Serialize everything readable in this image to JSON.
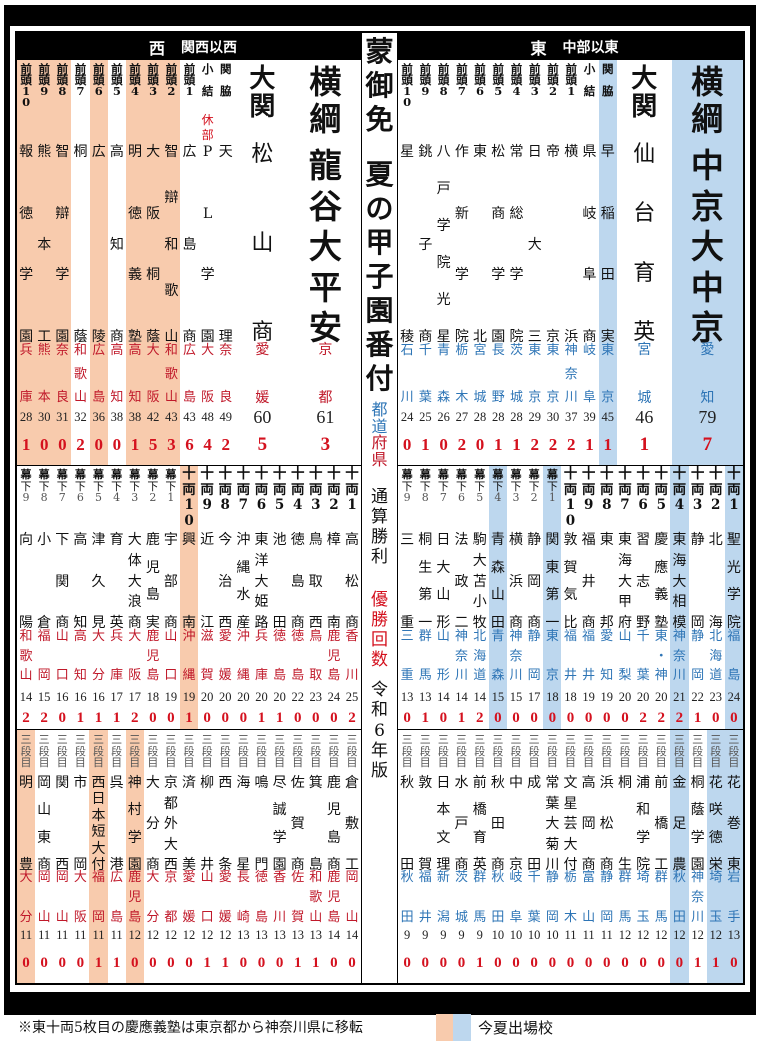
{
  "header": {
    "west": {
      "side": "西",
      "region": "関西以西"
    },
    "east": {
      "side": "東",
      "region": "中部以東"
    }
  },
  "center": {
    "gomen": "蒙御免",
    "title": "夏の甲子園番付",
    "pref_east": "都道",
    "pref_west": "府県",
    "wins_label": "通算勝利",
    "titles_label": "優勝回数",
    "edition": "令和6年版"
  },
  "footer": {
    "note": "※東十両5枚目の慶應義塾は東京都から神奈川県に移転",
    "legend_label": "今夏出場校"
  },
  "colors": {
    "hl_west": "#f8cbad",
    "hl_east": "#bdd7ee",
    "pref_west": "#c0192a",
    "pref_east": "#2e75b6",
    "titles": "#d4111e"
  },
  "chart_data": {
    "type": "table",
    "title": "蒙御免 夏の甲子園番付 令和6年版",
    "legend": {
      "highlight": "今夏出場校",
      "wins": "通算勝利",
      "titles": "優勝回数"
    },
    "west": {
      "makuuchi": [
        {
          "rank": "前頭10",
          "school": "報徳学園",
          "pref": "兵庫",
          "wins": 28,
          "titles": 1,
          "highlight": true
        },
        {
          "rank": "前頭9",
          "school": "熊本工",
          "pref": "熊本",
          "wins": 30,
          "titles": 0,
          "highlight": true
        },
        {
          "rank": "前頭8",
          "school": "智辯学園",
          "pref": "奈良",
          "wins": 31,
          "titles": 0,
          "highlight": true
        },
        {
          "rank": "前頭7",
          "school": "桐蔭",
          "pref": "和歌山",
          "wins": 32,
          "titles": 2
        },
        {
          "rank": "前頭6",
          "school": "広陵",
          "pref": "広島",
          "wins": 36,
          "titles": 0,
          "highlight": true
        },
        {
          "rank": "前頭5",
          "school": "高知商",
          "pref": "高知",
          "wins": 38,
          "titles": 0
        },
        {
          "rank": "前頭4",
          "school": "明徳義塾",
          "pref": "高知",
          "wins": 38,
          "titles": 1,
          "highlight": true
        },
        {
          "rank": "前頭3",
          "school": "大阪桐蔭",
          "pref": "大阪",
          "wins": 42,
          "titles": 5,
          "highlight": true
        },
        {
          "rank": "前頭2",
          "school": "智辯和歌山",
          "pref": "和歌山",
          "wins": 43,
          "titles": 3,
          "highlight": true
        },
        {
          "rank": "前頭1",
          "school": "広島商",
          "pref": "広島",
          "wins": 43,
          "titles": 6
        },
        {
          "rank": "小結",
          "school": "PL学園",
          "pref": "大阪",
          "wins": 48,
          "titles": 4,
          "note": "休部"
        },
        {
          "rank": "関脇",
          "school": "天理",
          "pref": "奈良",
          "wins": 49,
          "titles": 2
        }
      ],
      "ozeki": {
        "rank": "大関",
        "school": "松山商",
        "pref": "愛媛",
        "wins": 60,
        "titles": 5
      },
      "yokozuna": {
        "rank": "横綱",
        "school": "龍谷大平安",
        "pref": "京都",
        "wins": 61,
        "titles": 3
      },
      "juryo_makushita": [
        {
          "rank": "幕下9",
          "school": "向陽",
          "pref": "和歌山",
          "wins": 14,
          "titles": 2
        },
        {
          "rank": "幕下8",
          "school": "小倉",
          "pref": "福岡",
          "wins": 15,
          "titles": 2
        },
        {
          "rank": "幕下7",
          "school": "下関商",
          "pref": "山口",
          "wins": 16,
          "titles": 0
        },
        {
          "rank": "幕下6",
          "school": "高知",
          "pref": "高知",
          "wins": 16,
          "titles": 1
        },
        {
          "rank": "幕下5",
          "school": "津久見",
          "pref": "大分",
          "wins": 16,
          "titles": 1
        },
        {
          "rank": "幕下4",
          "school": "育英",
          "pref": "兵庫",
          "wins": 17,
          "titles": 1
        },
        {
          "rank": "幕下3",
          "school": "大体大浪商",
          "pref": "大阪",
          "wins": 17,
          "titles": 2
        },
        {
          "rank": "幕下2",
          "school": "鹿児島実",
          "pref": "鹿児島",
          "wins": 18,
          "titles": 0
        },
        {
          "rank": "幕下1",
          "school": "宇部商",
          "pref": "山口",
          "wins": 19,
          "titles": 0
        },
        {
          "rank": "十両10",
          "school": "興南",
          "pref": "沖縄",
          "wins": 19,
          "titles": 1,
          "highlight": true
        },
        {
          "rank": "十両9",
          "school": "近江",
          "pref": "滋賀",
          "wins": 20,
          "titles": 0
        },
        {
          "rank": "十両8",
          "school": "今治西",
          "pref": "愛媛",
          "wins": 20,
          "titles": 0
        },
        {
          "rank": "十両7",
          "school": "沖縄水産",
          "pref": "沖縄",
          "wins": 20,
          "titles": 0
        },
        {
          "rank": "十両6",
          "school": "東洋大姫路",
          "pref": "兵庫",
          "wins": 20,
          "titles": 1
        },
        {
          "rank": "十両5",
          "school": "池田",
          "pref": "徳島",
          "wins": 20,
          "titles": 1
        },
        {
          "rank": "十両4",
          "school": "徳島商",
          "pref": "徳島",
          "wins": 22,
          "titles": 0
        },
        {
          "rank": "十両3",
          "school": "鳥取西",
          "pref": "鳥取",
          "wins": 23,
          "titles": 0
        },
        {
          "rank": "十両2",
          "school": "樟南",
          "pref": "鹿児島",
          "wins": 24,
          "titles": 0
        },
        {
          "rank": "十両1",
          "school": "高松商",
          "pref": "香川",
          "wins": 25,
          "titles": 2
        }
      ],
      "sandanme": [
        {
          "rank": "三段目",
          "school": "明豊",
          "pref": "大分",
          "wins": 11,
          "titles": 0,
          "highlight": true
        },
        {
          "rank": "三段目",
          "school": "岡山東商",
          "pref": "岡山",
          "wins": 11,
          "titles": 0
        },
        {
          "rank": "三段目",
          "school": "関西",
          "pref": "岡山",
          "wins": 11,
          "titles": 0
        },
        {
          "rank": "三段目",
          "school": "市岡",
          "pref": "大阪",
          "wins": 11,
          "titles": 0
        },
        {
          "rank": "三段目",
          "school": "西日本短大付",
          "pref": "福岡",
          "wins": 11,
          "titles": 1,
          "highlight": true
        },
        {
          "rank": "三段目",
          "school": "呉港",
          "pref": "広島",
          "wins": 11,
          "titles": 1
        },
        {
          "rank": "三段目",
          "school": "神村学園",
          "pref": "鹿児島",
          "wins": 12,
          "titles": 0,
          "highlight": true
        },
        {
          "rank": "三段目",
          "school": "大分商",
          "pref": "大分",
          "wins": 12,
          "titles": 0
        },
        {
          "rank": "三段目",
          "school": "京都外大西",
          "pref": "京都",
          "wins": 12,
          "titles": 0
        },
        {
          "rank": "三段目",
          "school": "済美",
          "pref": "愛媛",
          "wins": 12,
          "titles": 0
        },
        {
          "rank": "三段目",
          "school": "柳井",
          "pref": "山口",
          "wins": 12,
          "titles": 1
        },
        {
          "rank": "三段目",
          "school": "西条",
          "pref": "愛媛",
          "wins": 12,
          "titles": 1
        },
        {
          "rank": "三段目",
          "school": "海星",
          "pref": "長崎",
          "wins": 13,
          "titles": 0
        },
        {
          "rank": "三段目",
          "school": "鳴門",
          "pref": "徳島",
          "wins": 13,
          "titles": 0
        },
        {
          "rank": "三段目",
          "school": "尽誠学園",
          "pref": "香川",
          "wins": 13,
          "titles": 0
        },
        {
          "rank": "三段目",
          "school": "佐賀商",
          "pref": "佐賀",
          "wins": 13,
          "titles": 1
        },
        {
          "rank": "三段目",
          "school": "箕島",
          "pref": "和歌山",
          "wins": 13,
          "titles": 1
        },
        {
          "rank": "三段目",
          "school": "鹿児島商",
          "pref": "鹿児島",
          "wins": 14,
          "titles": 0
        },
        {
          "rank": "三段目",
          "school": "倉敷工",
          "pref": "岡山",
          "wins": 14,
          "titles": 0
        }
      ]
    },
    "east": {
      "makuuchi": [
        {
          "rank": "前頭10",
          "school": "星稜",
          "pref": "石川",
          "wins": 24,
          "titles": 0
        },
        {
          "rank": "前頭9",
          "school": "銚子商",
          "pref": "千葉",
          "wins": 25,
          "titles": 1
        },
        {
          "rank": "前頭8",
          "school": "八戸学院光星",
          "pref": "青森",
          "wins": 26,
          "titles": 0
        },
        {
          "rank": "前頭7",
          "school": "作新学院",
          "pref": "栃木",
          "wins": 27,
          "titles": 2
        },
        {
          "rank": "前頭6",
          "school": "東北",
          "pref": "宮城",
          "wins": 28,
          "titles": 0
        },
        {
          "rank": "前頭5",
          "school": "松商学園",
          "pref": "長野",
          "wins": 28,
          "titles": 1
        },
        {
          "rank": "前頭4",
          "school": "常総学院",
          "pref": "茨城",
          "wins": 28,
          "titles": 1
        },
        {
          "rank": "前頭3",
          "school": "日大三",
          "pref": "東京",
          "wins": 29,
          "titles": 2
        },
        {
          "rank": "前頭2",
          "school": "帝京",
          "pref": "東京",
          "wins": 30,
          "titles": 2
        },
        {
          "rank": "前頭1",
          "school": "横浜",
          "pref": "神奈川",
          "wins": 37,
          "titles": 2
        },
        {
          "rank": "小結",
          "school": "県岐阜商",
          "pref": "岐阜",
          "wins": 39,
          "titles": 1
        },
        {
          "rank": "関脇",
          "school": "早稲田実",
          "pref": "東京",
          "wins": 45,
          "titles": 1,
          "highlight": true
        }
      ],
      "ozeki": {
        "rank": "大関",
        "school": "仙台育英",
        "pref": "宮城",
        "wins": 46,
        "titles": 1
      },
      "yokozuna": {
        "rank": "横綱",
        "school": "中京大中京",
        "pref": "愛知",
        "wins": 79,
        "titles": 7,
        "highlight": true
      },
      "juryo_makushita": [
        {
          "rank": "幕下9",
          "school": "三重",
          "pref": "三重",
          "wins": 13,
          "titles": 0
        },
        {
          "rank": "幕下8",
          "school": "桐生第一",
          "pref": "群馬",
          "wins": 13,
          "titles": 1
        },
        {
          "rank": "幕下7",
          "school": "日大山形",
          "pref": "山形",
          "wins": 14,
          "titles": 0
        },
        {
          "rank": "幕下6",
          "school": "法政二",
          "pref": "神奈川",
          "wins": 14,
          "titles": 1
        },
        {
          "rank": "幕下5",
          "school": "駒大苫小牧",
          "pref": "北海道",
          "wins": 14,
          "titles": 2
        },
        {
          "rank": "幕下4",
          "school": "青森山田",
          "pref": "青森",
          "wins": 15,
          "titles": 0,
          "highlight": true
        },
        {
          "rank": "幕下3",
          "school": "横浜商",
          "pref": "神奈川",
          "wins": 15,
          "titles": 0
        },
        {
          "rank": "幕下2",
          "school": "静岡商",
          "pref": "静岡",
          "wins": 17,
          "titles": 0
        },
        {
          "rank": "幕下1",
          "school": "関東第一",
          "pref": "東京",
          "wins": 18,
          "titles": 0,
          "highlight": true
        },
        {
          "rank": "十両10",
          "school": "敦賀気比",
          "pref": "福井",
          "wins": 18,
          "titles": 0
        },
        {
          "rank": "十両9",
          "school": "福井商",
          "pref": "福井",
          "wins": 19,
          "titles": 0
        },
        {
          "rank": "十両8",
          "school": "東邦",
          "pref": "愛知",
          "wins": 19,
          "titles": 0
        },
        {
          "rank": "十両7",
          "school": "東海大甲府",
          "pref": "山梨",
          "wins": 20,
          "titles": 0
        },
        {
          "rank": "十両6",
          "school": "習志野",
          "pref": "千葉",
          "wins": 20,
          "titles": 2
        },
        {
          "rank": "十両5",
          "school": "慶應義塾",
          "pref": "東・神",
          "wins": 20,
          "titles": 2
        },
        {
          "rank": "十両4",
          "school": "東海大相模",
          "pref": "神奈川",
          "wins": 21,
          "titles": 2,
          "highlight": true
        },
        {
          "rank": "十両3",
          "school": "静岡",
          "pref": "静岡",
          "wins": 22,
          "titles": 1
        },
        {
          "rank": "十両2",
          "school": "北海",
          "pref": "北海道",
          "wins": 23,
          "titles": 0
        },
        {
          "rank": "十両1",
          "school": "聖光学院",
          "pref": "福島",
          "wins": 24,
          "titles": 0,
          "highlight": true
        }
      ],
      "sandanme": [
        {
          "rank": "三段目",
          "school": "秋田",
          "pref": "秋田",
          "wins": 9,
          "titles": 0
        },
        {
          "rank": "三段目",
          "school": "敦賀",
          "pref": "福井",
          "wins": 9,
          "titles": 0
        },
        {
          "rank": "三段目",
          "school": "日本文理",
          "pref": "新潟",
          "wins": 9,
          "titles": 0
        },
        {
          "rank": "三段目",
          "school": "水戸商",
          "pref": "茨城",
          "wins": 9,
          "titles": 0
        },
        {
          "rank": "三段目",
          "school": "前橋育英",
          "pref": "群馬",
          "wins": 9,
          "titles": 1
        },
        {
          "rank": "三段目",
          "school": "秋田商",
          "pref": "秋田",
          "wins": 10,
          "titles": 0
        },
        {
          "rank": "三段目",
          "school": "中京",
          "pref": "岐阜",
          "wins": 10,
          "titles": 0
        },
        {
          "rank": "三段目",
          "school": "成田",
          "pref": "千葉",
          "wins": 10,
          "titles": 0
        },
        {
          "rank": "三段目",
          "school": "常葉大菊川",
          "pref": "静岡",
          "wins": 10,
          "titles": 0
        },
        {
          "rank": "三段目",
          "school": "文星芸大付",
          "pref": "栃木",
          "wins": 11,
          "titles": 0
        },
        {
          "rank": "三段目",
          "school": "高岡商",
          "pref": "富山",
          "wins": 11,
          "titles": 0
        },
        {
          "rank": "三段目",
          "school": "浜松商",
          "pref": "静岡",
          "wins": 11,
          "titles": 0
        },
        {
          "rank": "三段目",
          "school": "桐生",
          "pref": "群馬",
          "wins": 12,
          "titles": 0
        },
        {
          "rank": "三段目",
          "school": "浦和学院",
          "pref": "埼玉",
          "wins": 12,
          "titles": 0
        },
        {
          "rank": "三段目",
          "school": "前橋工",
          "pref": "群馬",
          "wins": 12,
          "titles": 0
        },
        {
          "rank": "三段目",
          "school": "金足農",
          "pref": "秋田",
          "wins": 12,
          "titles": 0,
          "highlight": true
        },
        {
          "rank": "三段目",
          "school": "桐蔭学園",
          "pref": "神奈川",
          "wins": 12,
          "titles": 1
        },
        {
          "rank": "三段目",
          "school": "花咲徳栄",
          "pref": "埼玉",
          "wins": 12,
          "titles": 1,
          "highlight": true
        },
        {
          "rank": "三段目",
          "school": "花巻東",
          "pref": "岩手",
          "wins": 13,
          "titles": 0,
          "highlight": true
        }
      ]
    }
  }
}
